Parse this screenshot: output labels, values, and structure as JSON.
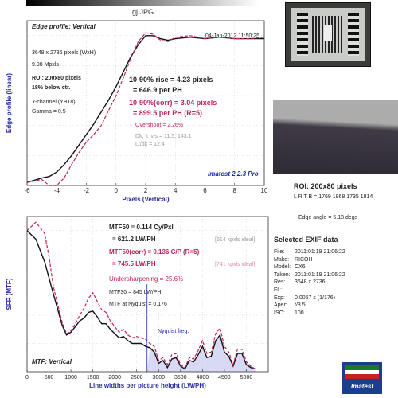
{
  "header": {
    "file_title": "gj.JPG"
  },
  "edge_chart": {
    "title": "Edge profile: Vertical",
    "date": "04-Jan-2012 11:50:25",
    "size": "3648 x 2736 pixels (WxH)",
    "mpxls": "9.98 Mpxls",
    "roi": "ROI: 200x80 pixels",
    "below": "18% below ctr.",
    "channel": "Y-channel (YB18)",
    "gamma": "Gamma = 0.5",
    "rise": "10-90% rise = 4.23 pixels",
    "per_ph": "= 646.9 per PH",
    "rise_corr": "10-90%(corr) = 3.04 pixels",
    "per_ph_corr": "= 899.5 per PH   (R=5)",
    "overshoot": "Overshoot = 2.26%",
    "dk_lt": "Dk, lt lvls = 11.5, 143.1",
    "ltdk": "Lt/dk = 12.4",
    "brand": "Imatest 2.2.3 Pro",
    "chart_data": {
      "type": "line",
      "xlabel": "Pixels (Vertical)",
      "ylabel": "Edge profile (linear)",
      "xlim": [
        -6,
        10
      ],
      "ylim": [
        0,
        1.1
      ],
      "xticks": [
        -6,
        -4,
        -2,
        0,
        2,
        4,
        6,
        8,
        10
      ],
      "series": [
        {
          "x": [
            -6,
            -5,
            -4.5,
            -4,
            -3.5,
            -3,
            -2.5,
            -2,
            -1.5,
            -1,
            -0.5,
            0,
            0.5,
            1,
            1.5,
            2,
            2.5,
            3,
            3.5,
            4,
            5,
            6,
            7,
            8,
            9,
            10
          ],
          "y": [
            0.02,
            0.05,
            0.06,
            0.09,
            0.14,
            0.2,
            0.27,
            0.34,
            0.41,
            0.49,
            0.57,
            0.66,
            0.76,
            0.86,
            0.94,
            1.0,
            1.0,
            0.98,
            0.97,
            0.98,
            0.99,
            0.98,
            0.99,
            0.98,
            0.98,
            0.98
          ]
        },
        {
          "x": [
            -6,
            -5,
            -4.5,
            -4,
            -3.5,
            -3,
            -2.5,
            -2,
            -1.5,
            -1,
            -0.5,
            0,
            0.5,
            1,
            1.5,
            2,
            2.5,
            3,
            3.5,
            4,
            5,
            6,
            7,
            8,
            9,
            10
          ],
          "y": [
            0.02,
            0.04,
            0.0,
            0.0,
            0.05,
            0.14,
            0.22,
            0.29,
            0.34,
            0.4,
            0.5,
            0.6,
            0.72,
            0.85,
            0.96,
            1.02,
            1.01,
            0.97,
            0.96,
            0.99,
            1.0,
            0.98,
            0.99,
            0.98,
            0.98,
            0.99
          ]
        }
      ]
    }
  },
  "thumb": {
    "roi_title": "ROI: 200x80 pixels",
    "lrtb": "L R T B = 1769 1968  1735 1814",
    "edge_angle": "Edge angle = 5.18 degs"
  },
  "mtf_chart": {
    "title": "MTF: Vertical",
    "mtf50": "MTF50 = 0.114 Cy/Pxl",
    "mtf50_lw": "= 621.2 LW/PH",
    "ideal1": "[614 kpxls ideal]",
    "mtf50c": "MTF50(corr) = 0.136 C/P   (R=5)",
    "mtf50c_lw": "= 745.5 LW/PH",
    "ideal2": "[741 kpxls ideal]",
    "under": "Undersharpening = 25.6%",
    "mtf30": "MTF30 = 845 LW/PH",
    "nyq": "MTF at Nyquist = 0.176",
    "nyq_label": "Nyquist freq.",
    "chart_data": {
      "type": "line",
      "xlabel": "Line widths per picture height (LW/PH)",
      "ylabel": "SFR (MTF)",
      "xlim": [
        0,
        5500
      ],
      "ylim": [
        0,
        1.1
      ],
      "xticks": [
        0,
        500,
        1000,
        1500,
        2000,
        2500,
        3000,
        3500,
        4000,
        4500,
        5000
      ],
      "nyquist": 2736,
      "series": [
        {
          "x": [
            0,
            200,
            400,
            600,
            800,
            900,
            1000,
            1100,
            1200,
            1300,
            1400,
            1500,
            1600,
            1700,
            1800,
            1900,
            2000,
            2100,
            2200,
            2300,
            2400,
            2500,
            2600,
            2700,
            2800,
            2900,
            3000,
            3100,
            3200,
            3300,
            3400,
            3500,
            3600,
            3700,
            3800,
            3900,
            4000,
            4100,
            4200,
            4300,
            4400,
            4500,
            4600,
            4700,
            4800,
            4900,
            5000,
            5100,
            5200
          ],
          "y": [
            1.0,
            0.94,
            0.78,
            0.55,
            0.33,
            0.26,
            0.28,
            0.32,
            0.36,
            0.38,
            0.42,
            0.43,
            0.39,
            0.34,
            0.34,
            0.3,
            0.27,
            0.24,
            0.25,
            0.22,
            0.2,
            0.2,
            0.2,
            0.18,
            0.17,
            0.14,
            0.06,
            0.08,
            0.03,
            0.09,
            0.1,
            0.04,
            0.02,
            0.08,
            0.07,
            0.12,
            0.18,
            0.1,
            0.11,
            0.22,
            0.26,
            0.14,
            0.11,
            0.04,
            0.13,
            0.13,
            0.05,
            0.03,
            0.02
          ]
        },
        {
          "x": [
            0,
            200,
            400,
            500,
            600,
            800,
            900,
            1000,
            1100,
            1200,
            1300,
            1400,
            1500,
            1600,
            1700,
            1800,
            1900,
            2000,
            2100,
            2200,
            2300,
            2400,
            2500,
            2600,
            2700,
            2800,
            2900,
            3000,
            3100,
            3200,
            3300,
            3400,
            3500,
            3600,
            3700,
            3800,
            3900,
            4000,
            4100,
            4200,
            4300,
            4400,
            4500,
            4600,
            4700,
            4800,
            4900,
            5000,
            5100,
            5200
          ],
          "y": [
            1.0,
            1.06,
            0.98,
            0.82,
            0.6,
            0.35,
            0.27,
            0.29,
            0.34,
            0.4,
            0.45,
            0.52,
            0.56,
            0.5,
            0.44,
            0.42,
            0.36,
            0.32,
            0.28,
            0.3,
            0.26,
            0.24,
            0.25,
            0.24,
            0.23,
            0.2,
            0.18,
            0.08,
            0.1,
            0.05,
            0.12,
            0.13,
            0.05,
            0.03,
            0.1,
            0.09,
            0.15,
            0.22,
            0.13,
            0.14,
            0.27,
            0.31,
            0.18,
            0.14,
            0.05,
            0.16,
            0.16,
            0.07,
            0.04,
            0.02
          ]
        }
      ]
    }
  },
  "exif": {
    "title": "Selected EXIF data",
    "rows": [
      {
        "k": "File:",
        "v": "2011:01:19 21:06:22"
      },
      {
        "k": "Make:",
        "v": "RICOH"
      },
      {
        "k": "Model:",
        "v": "CX6"
      },
      {
        "k": "Taken:",
        "v": "2011:01:19 21:06:22"
      },
      {
        "k": "Res:",
        "v": "3648 x 2736"
      },
      {
        "k": "FL:",
        "v": ""
      },
      {
        "k": "Exp:",
        "v": "0.0057 s  (1/176)"
      },
      {
        "k": "Aper:",
        "v": "f/3.5"
      },
      {
        "k": "ISO:",
        "v": "100"
      }
    ],
    "logo": "Imatest"
  },
  "colors": {
    "measured": "#111111",
    "corrected": "#c0245c",
    "nyquist_fill": "#d7d9f5",
    "brand": "#1a2cae"
  }
}
